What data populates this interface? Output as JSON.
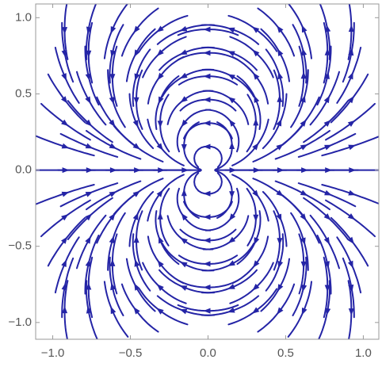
{
  "chart_data": {
    "type": "stream",
    "xlim": [
      -1.11,
      1.1
    ],
    "ylim": [
      -1.11,
      1.09
    ],
    "xticks": [
      {
        "value": -1,
        "label": "−1.0"
      },
      {
        "value": -0.5,
        "label": "−0.5"
      },
      {
        "value": 0,
        "label": "0.0"
      },
      {
        "value": 0.5,
        "label": "0.5"
      },
      {
        "value": 1,
        "label": "1.0"
      }
    ],
    "yticks": [
      {
        "value": -1,
        "label": "−1.0"
      },
      {
        "value": -0.5,
        "label": "−0.5"
      },
      {
        "value": 0,
        "label": "0.0"
      },
      {
        "value": 0.5,
        "label": "0.5"
      },
      {
        "value": 1,
        "label": "1.0"
      }
    ],
    "color": "#2424a6"
  }
}
